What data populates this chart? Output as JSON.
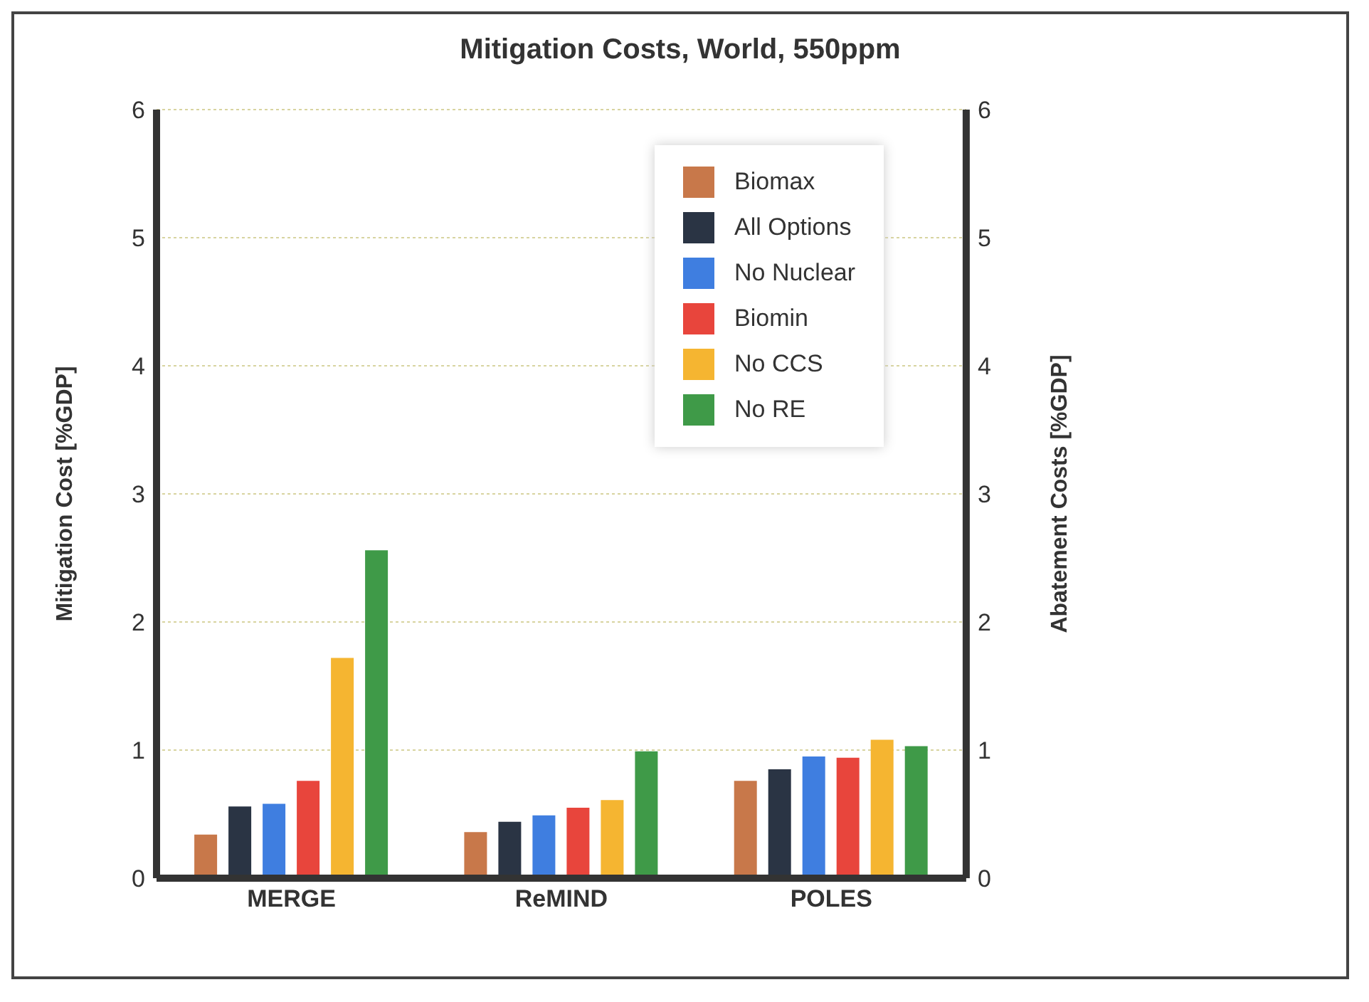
{
  "chart_data": {
    "type": "bar",
    "title": "Mitigation Costs, World, 550ppm",
    "ylabel": "Mitigation Cost [%GDP]",
    "y2label": "Abatement Costs [%GDP]",
    "categories": [
      "MERGE",
      "ReMIND",
      "POLES"
    ],
    "series": [
      {
        "name": "Biomax",
        "color": "#c8784a",
        "values": [
          0.34,
          0.36,
          0.76
        ]
      },
      {
        "name": "All Options",
        "color": "#2a3444",
        "values": [
          0.56,
          0.44,
          0.85
        ]
      },
      {
        "name": "No Nuclear",
        "color": "#3f7ee0",
        "values": [
          0.58,
          0.49,
          0.95
        ]
      },
      {
        "name": "Biomin",
        "color": "#e8453c",
        "values": [
          0.76,
          0.55,
          0.94
        ]
      },
      {
        "name": "No CCS",
        "color": "#f5b531",
        "values": [
          1.72,
          0.61,
          1.08
        ]
      },
      {
        "name": "No RE",
        "color": "#3f9a48",
        "values": [
          2.56,
          0.99,
          1.03
        ]
      }
    ],
    "ylim": [
      0,
      6
    ],
    "yticks": [
      0,
      1,
      2,
      3,
      4,
      5,
      6
    ],
    "y2lim": [
      0,
      6
    ],
    "y2ticks": [
      0,
      1,
      2,
      3,
      4,
      5,
      6
    ],
    "grid": "y",
    "legend": "top right"
  }
}
